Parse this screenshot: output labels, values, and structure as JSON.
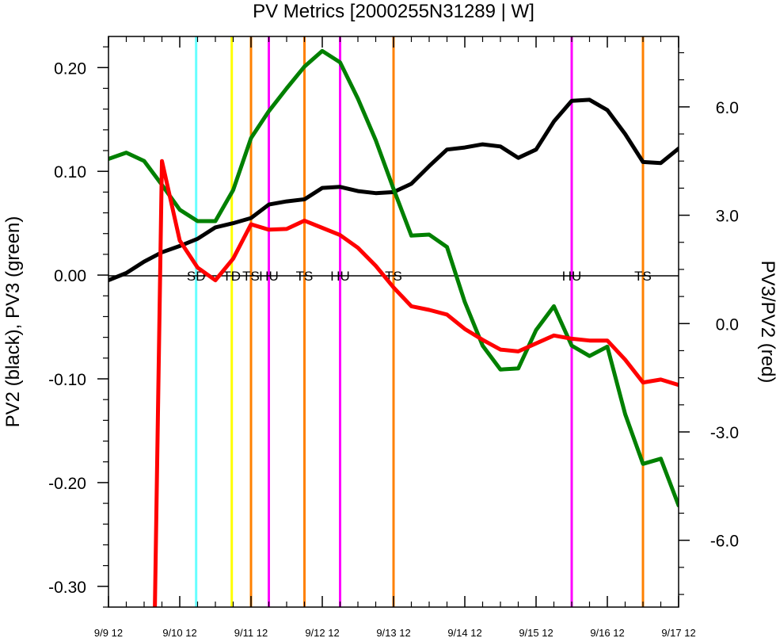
{
  "chart_data": {
    "type": "line",
    "title": "PV Metrics [2000255N31289 | W]",
    "ylabel_left": "PV2 (black), PV3 (green)",
    "ylabel_right": "PV3/PV2 (red)",
    "x_range": [
      0,
      8
    ],
    "x_ticks": [
      {
        "x": 0,
        "label": "9/9 12"
      },
      {
        "x": 1,
        "label": "9/10 12"
      },
      {
        "x": 2,
        "label": "9/11 12"
      },
      {
        "x": 3,
        "label": "9/12 12"
      },
      {
        "x": 4,
        "label": "9/13 12"
      },
      {
        "x": 5,
        "label": "9/14 12"
      },
      {
        "x": 6,
        "label": "9/15 12"
      },
      {
        "x": 7,
        "label": "9/16 12"
      },
      {
        "x": 8,
        "label": "9/17 12"
      }
    ],
    "y_left_range": [
      -0.32,
      0.23
    ],
    "y_left_ticks": [
      {
        "value": 0.2,
        "label": "0.20"
      },
      {
        "value": 0.1,
        "label": "0.10"
      },
      {
        "value": 0.0,
        "label": "0.00"
      },
      {
        "value": -0.1,
        "label": "-0.10"
      },
      {
        "value": -0.2,
        "label": "-0.20"
      },
      {
        "value": -0.3,
        "label": "-0.30"
      }
    ],
    "y_right_range": [
      -7.85,
      7.95
    ],
    "y_right_ticks": [
      {
        "value": 6.0,
        "label": "6.0"
      },
      {
        "value": 3.0,
        "label": "3.0"
      },
      {
        "value": 0.0,
        "label": "0.0"
      },
      {
        "value": -3.0,
        "label": "-3.0"
      },
      {
        "value": -6.0,
        "label": "-6.0"
      }
    ],
    "series": [
      {
        "color": "#000000",
        "axis": "left",
        "x": [
          0,
          0.25,
          0.5,
          0.75,
          1.0,
          1.25,
          1.5,
          1.75,
          2.0,
          2.25,
          2.5,
          2.75,
          3.0,
          3.25,
          3.5,
          3.75,
          4.0,
          4.25,
          4.5,
          4.75,
          5.0,
          5.25,
          5.5,
          5.75,
          6.0,
          6.25,
          6.5,
          6.75,
          7.0,
          7.25,
          7.5,
          7.75,
          8.0
        ],
        "values": [
          -0.005,
          0.002,
          0.013,
          0.022,
          0.028,
          0.035,
          0.046,
          0.05,
          0.055,
          0.068,
          0.071,
          0.073,
          0.084,
          0.085,
          0.081,
          0.079,
          0.08,
          0.088,
          0.105,
          0.121,
          0.123,
          0.126,
          0.124,
          0.113,
          0.121,
          0.148,
          0.168,
          0.169,
          0.159,
          0.136,
          0.109,
          0.108,
          0.122
        ]
      },
      {
        "color": "#008000",
        "axis": "left",
        "x": [
          0,
          0.25,
          0.5,
          0.75,
          1.0,
          1.25,
          1.5,
          1.75,
          2.0,
          2.25,
          2.5,
          2.75,
          3.0,
          3.25,
          3.5,
          3.75,
          4.0,
          4.25,
          4.5,
          4.75,
          5.0,
          5.25,
          5.5,
          5.75,
          6.0,
          6.25,
          6.5,
          6.75,
          7.0,
          7.25,
          7.5,
          7.75,
          8.0
        ],
        "values": [
          0.112,
          0.118,
          0.11,
          0.087,
          0.063,
          0.052,
          0.052,
          0.082,
          0.132,
          0.158,
          0.18,
          0.201,
          0.216,
          0.205,
          0.17,
          0.13,
          0.083,
          0.038,
          0.039,
          0.027,
          -0.026,
          -0.068,
          -0.091,
          -0.09,
          -0.053,
          -0.03,
          -0.068,
          -0.078,
          -0.069,
          -0.134,
          -0.182,
          -0.177,
          -0.222
        ]
      },
      {
        "color": "#ff0000",
        "axis": "right",
        "x": [
          0.65,
          0.75,
          1.0,
          1.25,
          1.5,
          1.75,
          2.0,
          2.25,
          2.5,
          2.75,
          3.0,
          3.25,
          3.5,
          3.75,
          4.0,
          4.25,
          4.5,
          4.75,
          5.0,
          5.25,
          5.5,
          5.75,
          6.0,
          6.25,
          6.5,
          6.75,
          7.0,
          7.25,
          7.5,
          7.75,
          8.0
        ],
        "values": [
          -8.0,
          4.5,
          2.3,
          1.55,
          1.2,
          1.8,
          2.75,
          2.6,
          2.62,
          2.85,
          2.65,
          2.45,
          2.1,
          1.6,
          1.0,
          0.48,
          0.38,
          0.25,
          -0.15,
          -0.45,
          -0.72,
          -0.77,
          -0.55,
          -0.33,
          -0.42,
          -0.47,
          -0.47,
          -1.0,
          -1.63,
          -1.55,
          -1.7
        ]
      }
    ],
    "events": [
      {
        "x": 1.23,
        "color": "#66ffff",
        "label": "SD"
      },
      {
        "x": 1.73,
        "color": "#ffff00",
        "label": "TD"
      },
      {
        "x": 2.0,
        "color": "#ff8000",
        "label": "TS"
      },
      {
        "x": 2.25,
        "color": "#ff00ff",
        "label": "HU"
      },
      {
        "x": 2.75,
        "color": "#ff8000",
        "label": "TS"
      },
      {
        "x": 3.25,
        "color": "#ff00ff",
        "label": "HU"
      },
      {
        "x": 4.0,
        "color": "#ff8000",
        "label": "TS"
      },
      {
        "x": 6.5,
        "color": "#ff00ff",
        "label": "HU"
      },
      {
        "x": 7.5,
        "color": "#ff8000",
        "label": "TS"
      }
    ]
  }
}
